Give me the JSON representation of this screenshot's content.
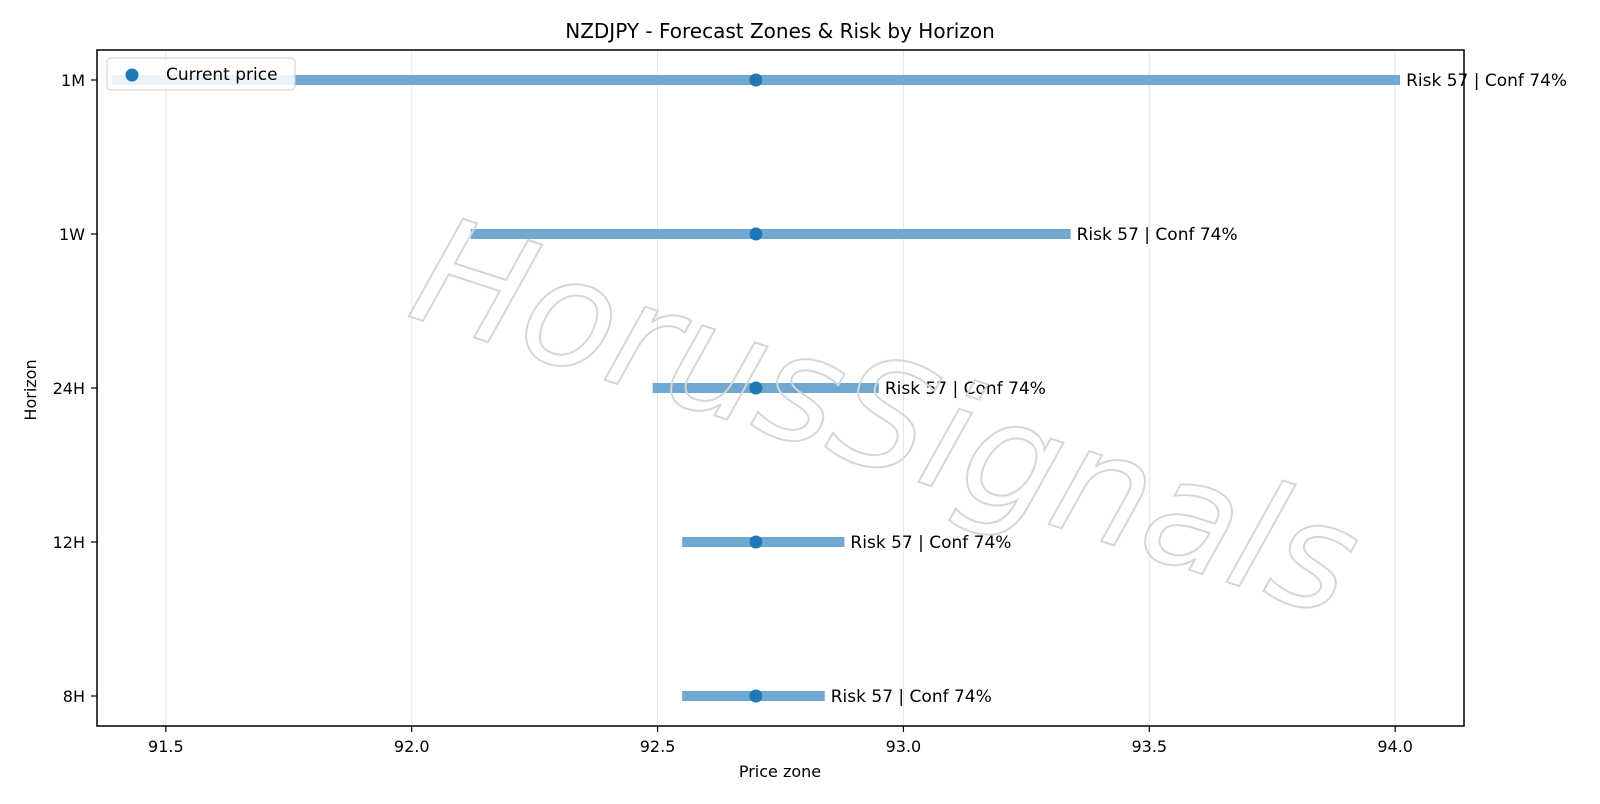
{
  "chart_data": {
    "type": "range",
    "title": "NZDJPY - Forecast Zones & Risk by Horizon",
    "xlabel": "Price zone",
    "ylabel": "Horizon",
    "xlim": [
      91.36,
      94.14
    ],
    "xticks": [
      91.5,
      92.0,
      92.5,
      93.0,
      93.5,
      94.0
    ],
    "xtick_labels": [
      "91.5",
      "92.0",
      "92.5",
      "93.0",
      "93.5",
      "94.0"
    ],
    "categories": [
      "1M",
      "1W",
      "24H",
      "12H",
      "8H"
    ],
    "current_price": 92.7,
    "zones": [
      {
        "horizon": "1M",
        "low": 91.39,
        "high": 94.01,
        "label": "Risk 57 | Conf 74%"
      },
      {
        "horizon": "1W",
        "low": 92.12,
        "high": 93.34,
        "label": "Risk 57 | Conf 74%"
      },
      {
        "horizon": "24H",
        "low": 92.49,
        "high": 92.95,
        "label": "Risk 57 | Conf 74%"
      },
      {
        "horizon": "12H",
        "low": 92.55,
        "high": 92.88,
        "label": "Risk 57 | Conf 74%"
      },
      {
        "horizon": "8H",
        "low": 92.55,
        "high": 92.84,
        "label": "Risk 57 | Conf 74%"
      }
    ],
    "legend": {
      "entries": [
        "Current price"
      ],
      "placement": "top-left"
    },
    "grid": {
      "x": true,
      "y": false
    },
    "colors": {
      "zone_bar": "#6fa8d0",
      "current_marker": "#1f77b4",
      "grid": "#e5e5e5",
      "watermark": "#d6d6d6"
    },
    "watermark": "HorusSignals"
  }
}
